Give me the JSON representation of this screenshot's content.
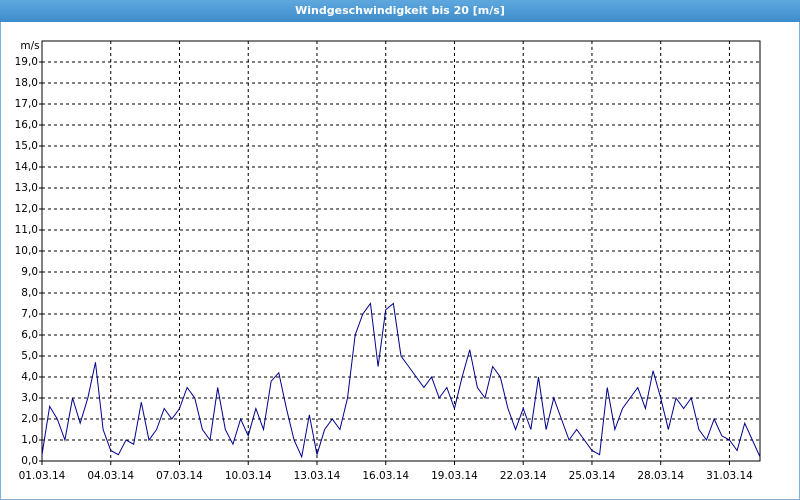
{
  "chart_data": {
    "type": "line",
    "title": "Windgeschwindigkeit bis 20 [m/s]",
    "y_label": "m/s",
    "x": [
      "2014-03-01T00:00",
      "2014-03-01T08:00",
      "2014-03-01T16:00",
      "2014-03-02T00:00",
      "2014-03-02T08:00",
      "2014-03-02T16:00",
      "2014-03-03T00:00",
      "2014-03-03T08:00",
      "2014-03-03T16:00",
      "2014-03-04T00:00",
      "2014-03-04T08:00",
      "2014-03-04T16:00",
      "2014-03-05T00:00",
      "2014-03-05T08:00",
      "2014-03-05T16:00",
      "2014-03-06T00:00",
      "2014-03-06T08:00",
      "2014-03-06T16:00",
      "2014-03-07T00:00",
      "2014-03-07T08:00",
      "2014-03-07T16:00",
      "2014-03-08T00:00",
      "2014-03-08T08:00",
      "2014-03-08T16:00",
      "2014-03-09T00:00",
      "2014-03-09T08:00",
      "2014-03-09T16:00",
      "2014-03-10T00:00",
      "2014-03-10T08:00",
      "2014-03-10T16:00",
      "2014-03-11T00:00",
      "2014-03-11T08:00",
      "2014-03-11T16:00",
      "2014-03-12T00:00",
      "2014-03-12T08:00",
      "2014-03-12T16:00",
      "2014-03-13T00:00",
      "2014-03-13T08:00",
      "2014-03-13T16:00",
      "2014-03-14T00:00",
      "2014-03-14T08:00",
      "2014-03-14T16:00",
      "2014-03-15T00:00",
      "2014-03-15T08:00",
      "2014-03-15T16:00",
      "2014-03-16T00:00",
      "2014-03-16T08:00",
      "2014-03-16T16:00",
      "2014-03-17T00:00",
      "2014-03-17T08:00",
      "2014-03-17T16:00",
      "2014-03-18T00:00",
      "2014-03-18T08:00",
      "2014-03-18T16:00",
      "2014-03-19T00:00",
      "2014-03-19T08:00",
      "2014-03-19T16:00",
      "2014-03-20T00:00",
      "2014-03-20T08:00",
      "2014-03-20T16:00",
      "2014-03-21T00:00",
      "2014-03-21T08:00",
      "2014-03-21T16:00",
      "2014-03-22T00:00",
      "2014-03-22T08:00",
      "2014-03-22T16:00",
      "2014-03-23T00:00",
      "2014-03-23T08:00",
      "2014-03-23T16:00",
      "2014-03-24T00:00",
      "2014-03-24T08:00",
      "2014-03-24T16:00",
      "2014-03-25T00:00",
      "2014-03-25T08:00",
      "2014-03-25T16:00",
      "2014-03-26T00:00",
      "2014-03-26T08:00",
      "2014-03-26T16:00",
      "2014-03-27T00:00",
      "2014-03-27T08:00",
      "2014-03-27T16:00",
      "2014-03-28T00:00",
      "2014-03-28T08:00",
      "2014-03-28T16:00",
      "2014-03-29T00:00",
      "2014-03-29T08:00",
      "2014-03-29T16:00",
      "2014-03-30T00:00",
      "2014-03-30T08:00",
      "2014-03-30T16:00",
      "2014-03-31T00:00",
      "2014-03-31T08:00",
      "2014-03-31T16:00",
      "2014-04-01T00:00",
      "2014-04-01T08:00"
    ],
    "series": [
      {
        "name": "Windgeschwindigkeit",
        "color": "#00008b",
        "values": [
          0.3,
          2.6,
          2.0,
          1.0,
          3.0,
          1.8,
          3.0,
          4.7,
          1.5,
          0.5,
          0.3,
          1.0,
          0.8,
          2.8,
          1.0,
          1.5,
          2.5,
          2.0,
          2.5,
          3.5,
          3.0,
          1.5,
          1.0,
          3.5,
          1.5,
          0.8,
          2.0,
          1.2,
          2.5,
          1.5,
          3.8,
          4.2,
          2.5,
          1.0,
          0.2,
          2.2,
          0.3,
          1.5,
          2.0,
          1.5,
          3.0,
          6.0,
          7.0,
          7.5,
          4.5,
          7.2,
          7.5,
          5.0,
          4.5,
          4.0,
          3.5,
          4.0,
          3.0,
          3.5,
          2.5,
          4.0,
          5.3,
          3.5,
          3.0,
          4.5,
          4.0,
          2.5,
          1.5,
          2.5,
          1.5,
          4.0,
          1.5,
          3.0,
          2.0,
          1.0,
          1.5,
          1.0,
          0.5,
          0.3,
          3.5,
          1.5,
          2.5,
          3.0,
          3.5,
          2.5,
          4.3,
          3.0,
          1.5,
          3.0,
          2.5,
          3.0,
          1.5,
          1.0,
          2.0,
          1.2,
          1.0,
          0.5,
          1.8,
          1.0,
          0.2
        ]
      }
    ],
    "xlim": [
      "2014-03-01T00:00",
      "2014-04-01T08:00"
    ],
    "xticks": [
      {
        "value": "2014-03-01T00:00",
        "label": "01.03.14"
      },
      {
        "value": "2014-03-04T00:00",
        "label": "04.03.14"
      },
      {
        "value": "2014-03-07T00:00",
        "label": "07.03.14"
      },
      {
        "value": "2014-03-10T00:00",
        "label": "10.03.14"
      },
      {
        "value": "2014-03-13T00:00",
        "label": "13.03.14"
      },
      {
        "value": "2014-03-16T00:00",
        "label": "16.03.14"
      },
      {
        "value": "2014-03-19T00:00",
        "label": "19.03.14"
      },
      {
        "value": "2014-03-22T00:00",
        "label": "22.03.14"
      },
      {
        "value": "2014-03-25T00:00",
        "label": "25.03.14"
      },
      {
        "value": "2014-03-28T00:00",
        "label": "28.03.14"
      },
      {
        "value": "2014-03-31T00:00",
        "label": "31.03.14"
      }
    ],
    "ylim": [
      0,
      20
    ],
    "yticks": [
      {
        "value": 0,
        "label": "0,0"
      },
      {
        "value": 1,
        "label": "1,0"
      },
      {
        "value": 2,
        "label": "2,0"
      },
      {
        "value": 3,
        "label": "3,0"
      },
      {
        "value": 4,
        "label": "4,0"
      },
      {
        "value": 5,
        "label": "5,0"
      },
      {
        "value": 6,
        "label": "6,0"
      },
      {
        "value": 7,
        "label": "7,0"
      },
      {
        "value": 8,
        "label": "8,0"
      },
      {
        "value": 9,
        "label": "9,0"
      },
      {
        "value": 10,
        "label": "10,0"
      },
      {
        "value": 11,
        "label": "11,0"
      },
      {
        "value": 12,
        "label": "12,0"
      },
      {
        "value": 13,
        "label": "13,0"
      },
      {
        "value": 14,
        "label": "14,0"
      },
      {
        "value": 15,
        "label": "15,0"
      },
      {
        "value": 16,
        "label": "16,0"
      },
      {
        "value": 17,
        "label": "17,0"
      },
      {
        "value": 18,
        "label": "18,0"
      },
      {
        "value": 19,
        "label": "19,0"
      }
    ],
    "grid": true
  }
}
